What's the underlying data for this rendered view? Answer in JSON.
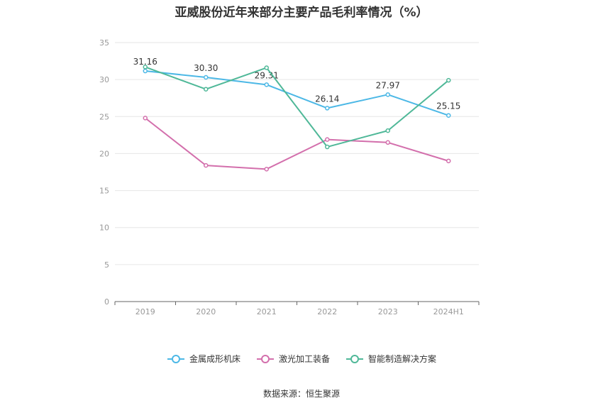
{
  "title": "亚威股份近年来部分主要产品毛利率情况（%）",
  "source": "数据来源：恒生聚源",
  "chart_data": {
    "type": "line",
    "title": "亚威股份近年来部分主要产品毛利率情况（%）",
    "categories": [
      "2019",
      "2020",
      "2021",
      "2022",
      "2023",
      "2024H1"
    ],
    "ylim": [
      0,
      35
    ],
    "yticks": [
      0,
      5,
      10,
      15,
      20,
      25,
      30,
      35
    ],
    "grid": true,
    "legend_position": "bottom",
    "series": [
      {
        "name": "金属成形机床",
        "color": "#4cb8e6",
        "values": [
          31.16,
          30.3,
          29.31,
          26.14,
          27.97,
          25.15
        ],
        "show_labels": true
      },
      {
        "name": "激光加工装备",
        "color": "#d36fac",
        "values": [
          24.8,
          18.4,
          17.9,
          21.9,
          21.5,
          19.0
        ],
        "show_labels": false
      },
      {
        "name": "智能制造解决方案",
        "color": "#4fb898",
        "values": [
          31.7,
          28.7,
          31.6,
          20.9,
          23.1,
          29.9
        ],
        "show_labels": false
      }
    ]
  }
}
